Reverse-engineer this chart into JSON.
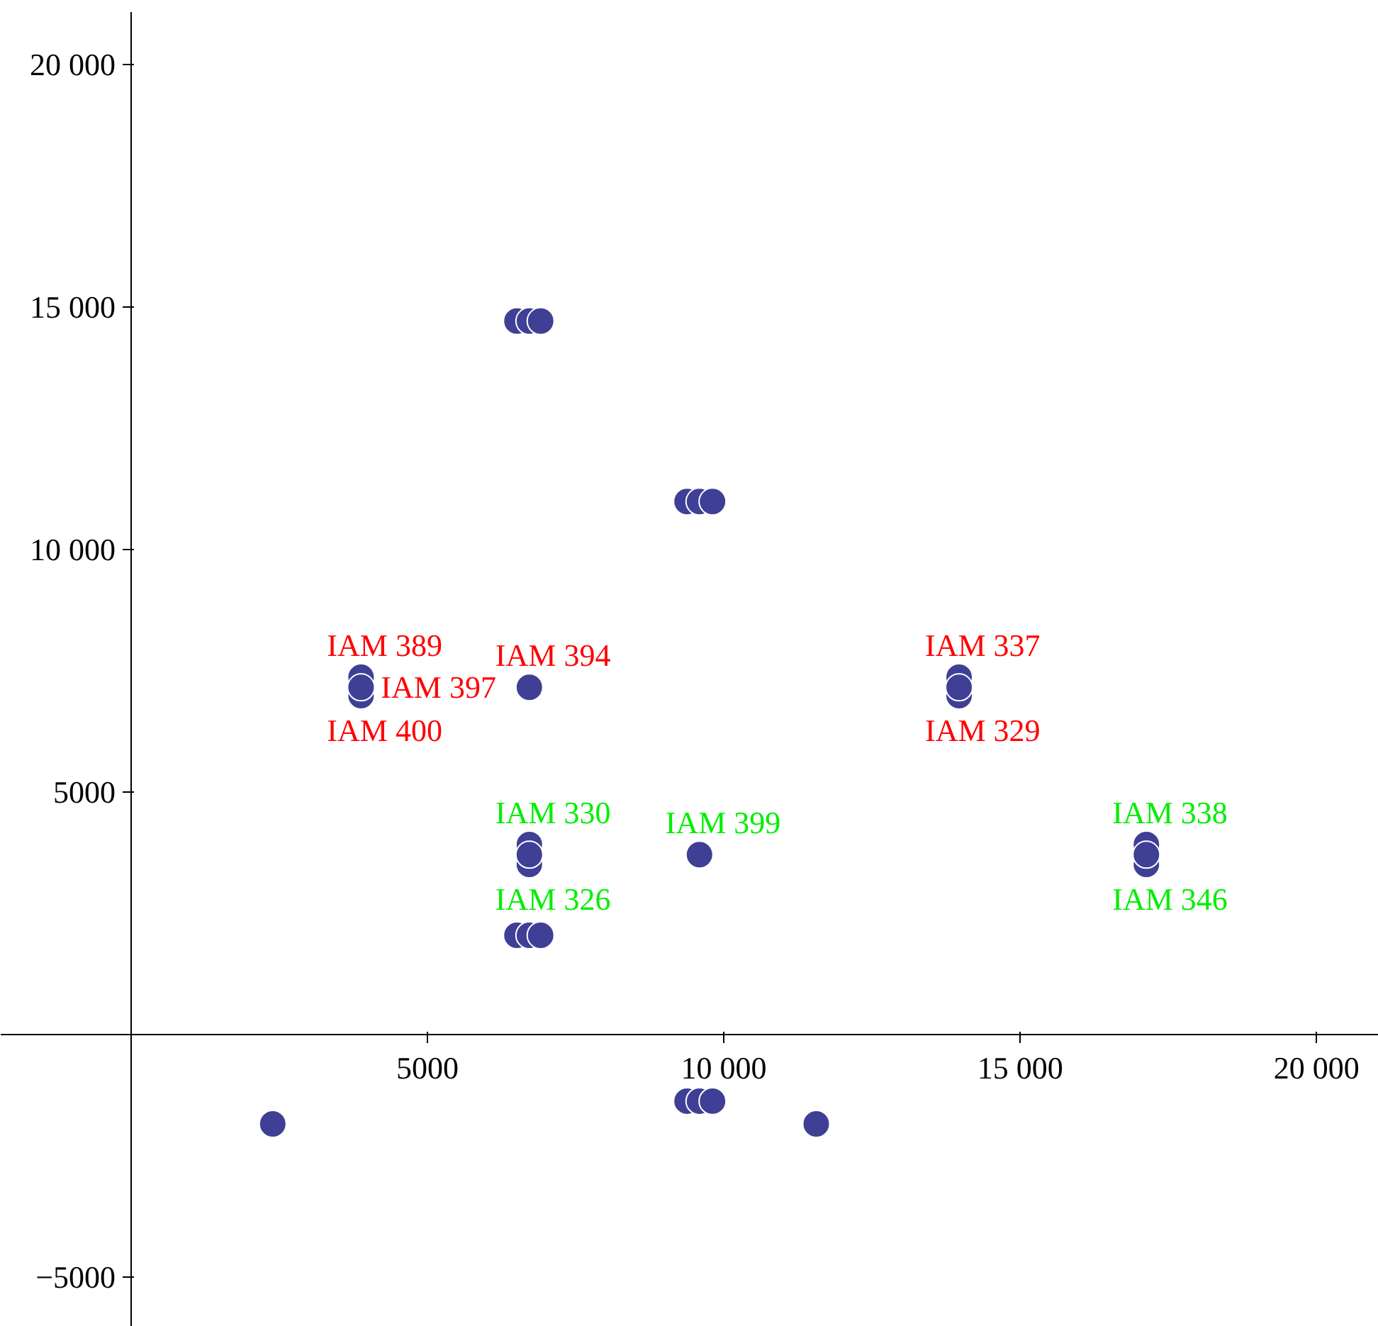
{
  "chart_data": {
    "type": "scatter",
    "marker": "circle",
    "grid": false,
    "xlim": [
      -2200,
      21050
    ],
    "ylim": [
      -6020,
      21080
    ],
    "xticks": [
      {
        "value": 5000,
        "label": "5000"
      },
      {
        "value": 10000,
        "label": "10 000"
      },
      {
        "value": 15000,
        "label": "15 000"
      },
      {
        "value": 20000,
        "label": "20 000"
      }
    ],
    "yticks": [
      {
        "value": -5000,
        "label": "−5000"
      },
      {
        "value": 5000,
        "label": "5000"
      },
      {
        "value": 10000,
        "label": "10 000"
      },
      {
        "value": 15000,
        "label": "15 000"
      },
      {
        "value": 20000,
        "label": "20 000"
      }
    ],
    "series": [
      {
        "color": "#3f3f96",
        "x": [
          3880,
          3880,
          6720,
          13970,
          13970,
          6510,
          6720,
          6910,
          6510,
          6720,
          6910,
          3880,
          13970
        ],
        "values": [
          7370,
          6990,
          7160,
          7370,
          6990,
          14710,
          14710,
          14710,
          2050,
          2050,
          2050,
          7160,
          7160
        ],
        "value_labels": [
          "IAM 389",
          "IAM 400",
          "IAM 394",
          "IAM 337",
          "IAM 329",
          null,
          null,
          null,
          null,
          null,
          null,
          "IAM 397",
          null
        ]
      },
      {
        "color": "#3f3f96",
        "x": [
          6720,
          6720,
          9590,
          17130,
          17130,
          9380,
          9590,
          9810,
          9380,
          9590,
          9810,
          2390,
          11560,
          6720,
          17130
        ],
        "values": [
          3920,
          3510,
          3710,
          3920,
          3510,
          10990,
          10990,
          10990,
          -1370,
          -1370,
          -1370,
          -1840,
          -1840,
          3710,
          3710
        ],
        "value_labels": [
          "IAM 330",
          "IAM 326",
          "IAM 399",
          "IAM 338",
          "IAM 346",
          null,
          null,
          null,
          null,
          null,
          null,
          null,
          null,
          null,
          null
        ]
      }
    ]
  }
}
